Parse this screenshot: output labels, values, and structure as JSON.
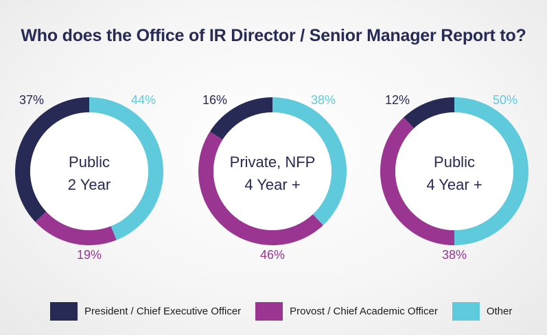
{
  "chart_data": {
    "type": "pie",
    "title": "Who does the Office of IR Director / Senior Manager Report to?",
    "legend_position": "bottom",
    "series": [
      {
        "name": "President / Chief Executive Officer",
        "color": "#262a54"
      },
      {
        "name": "Provost / Chief Academic Officer",
        "color": "#9a3592"
      },
      {
        "name": "Other",
        "color": "#5ecadb"
      }
    ],
    "charts": [
      {
        "label_lines": [
          "Public",
          "2 Year"
        ],
        "values": [
          37,
          19,
          44
        ],
        "labels": [
          "37%",
          "19%",
          "44%"
        ]
      },
      {
        "label_lines": [
          "Private, NFP",
          "4 Year +"
        ],
        "values": [
          16,
          46,
          38
        ],
        "labels": [
          "16%",
          "46%",
          "38%"
        ]
      },
      {
        "label_lines": [
          "Public",
          "4 Year +"
        ],
        "values": [
          12,
          38,
          50
        ],
        "labels": [
          "12%",
          "38%",
          "50%"
        ]
      }
    ]
  }
}
